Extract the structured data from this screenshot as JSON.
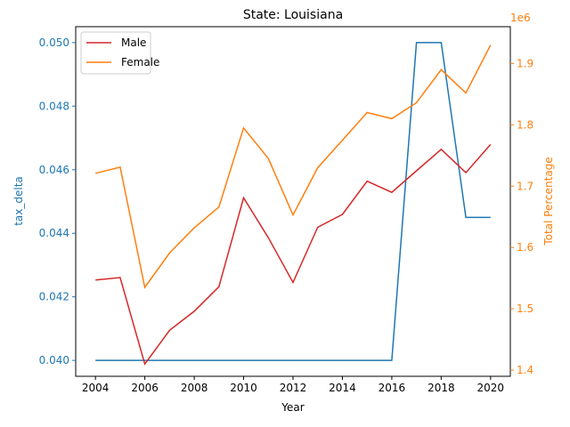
{
  "chart_data": {
    "type": "line",
    "title": "State: Louisiana",
    "xlabel": "Year",
    "ylabel_left": "tax_delta",
    "ylabel_right": "Total Percentage",
    "right_offset_text": "1e6",
    "x": [
      2004,
      2005,
      2006,
      2007,
      2008,
      2009,
      2010,
      2011,
      2012,
      2013,
      2014,
      2015,
      2016,
      2017,
      2018,
      2019,
      2020
    ],
    "xlim": [
      2003.2,
      2020.8
    ],
    "ylim_left": [
      0.0395,
      0.0505
    ],
    "ylim_right": [
      1.39,
      1.96
    ],
    "x_ticks": [
      "2004",
      "2006",
      "2008",
      "2010",
      "2012",
      "2014",
      "2016",
      "2018",
      "2020"
    ],
    "y_left_ticks": [
      "0.040",
      "0.042",
      "0.044",
      "0.046",
      "0.048",
      "0.050"
    ],
    "y_right_ticks": [
      "1.4",
      "1.5",
      "1.6",
      "1.7",
      "1.8",
      "1.9"
    ],
    "colors": {
      "tax_delta": "#1f77b4",
      "male": "#d62728",
      "female": "#ff7f0e"
    },
    "tax_delta_values": [
      0.04,
      0.04,
      0.04,
      0.04,
      0.04,
      0.04,
      0.04,
      0.04,
      0.04,
      0.04,
      0.04,
      0.04,
      0.04,
      0.05,
      0.05,
      0.0445,
      0.0445
    ],
    "series": [
      {
        "name": "Male",
        "axis": "right",
        "values": [
          1.547,
          1.551,
          1.41,
          1.465,
          1.496,
          1.536,
          1.681,
          1.616,
          1.543,
          1.633,
          1.654,
          1.708,
          1.69,
          1.725,
          1.76,
          1.722,
          1.768
        ]
      },
      {
        "name": "Female",
        "axis": "right",
        "values": [
          1.721,
          1.731,
          1.535,
          1.591,
          1.632,
          1.666,
          1.795,
          1.745,
          1.653,
          1.73,
          1.775,
          1.82,
          1.81,
          1.836,
          1.89,
          1.852,
          1.93
        ]
      }
    ],
    "legend_position": "upper-left",
    "grid": false
  }
}
